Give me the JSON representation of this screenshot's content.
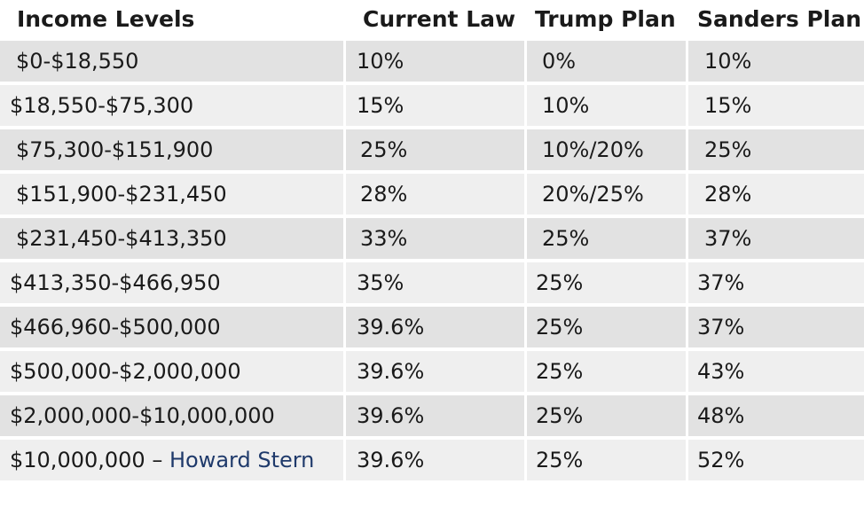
{
  "table": {
    "headers": [
      "Income Levels",
      "Current Law",
      "Trump Plan",
      "Sanders Plan"
    ],
    "rows": [
      {
        "income": "$0-$18,550",
        "current": "10%",
        "trump": "0%",
        "sanders": "10%"
      },
      {
        "income": "$18,550-$75,300",
        "current": "15%",
        "trump": "10%",
        "sanders": "15%"
      },
      {
        "income": "$75,300-$151,900",
        "current": "25%",
        "trump": "10%/20%",
        "sanders": "25%"
      },
      {
        "income": "$151,900-$231,450",
        "current": "28%",
        "trump": "20%/25%",
        "sanders": "28%"
      },
      {
        "income": "$231,450-$413,350",
        "current": "33%",
        "trump": "25%",
        "sanders": "37%"
      },
      {
        "income": "$413,350-$466,950",
        "current": "35%",
        "trump": "25%",
        "sanders": "37%"
      },
      {
        "income": "$466,960-$500,000",
        "current": "39.6%",
        "trump": "25%",
        "sanders": "37%"
      },
      {
        "income": "$500,000-$2,000,000",
        "current": "39.6%",
        "trump": "25%",
        "sanders": "43%"
      },
      {
        "income": "$2,000,000-$10,000,000",
        "current": "39.6%",
        "trump": "25%",
        "sanders": "48%"
      },
      {
        "income": "$10,000,000 – ",
        "income_link": "Howard Stern",
        "current": "39.6%",
        "trump": "25%",
        "sanders": "52%"
      }
    ]
  },
  "colors": {
    "shade_row": "#e2e2e2",
    "light_row": "#efefef",
    "link": "#1f3a6b"
  }
}
